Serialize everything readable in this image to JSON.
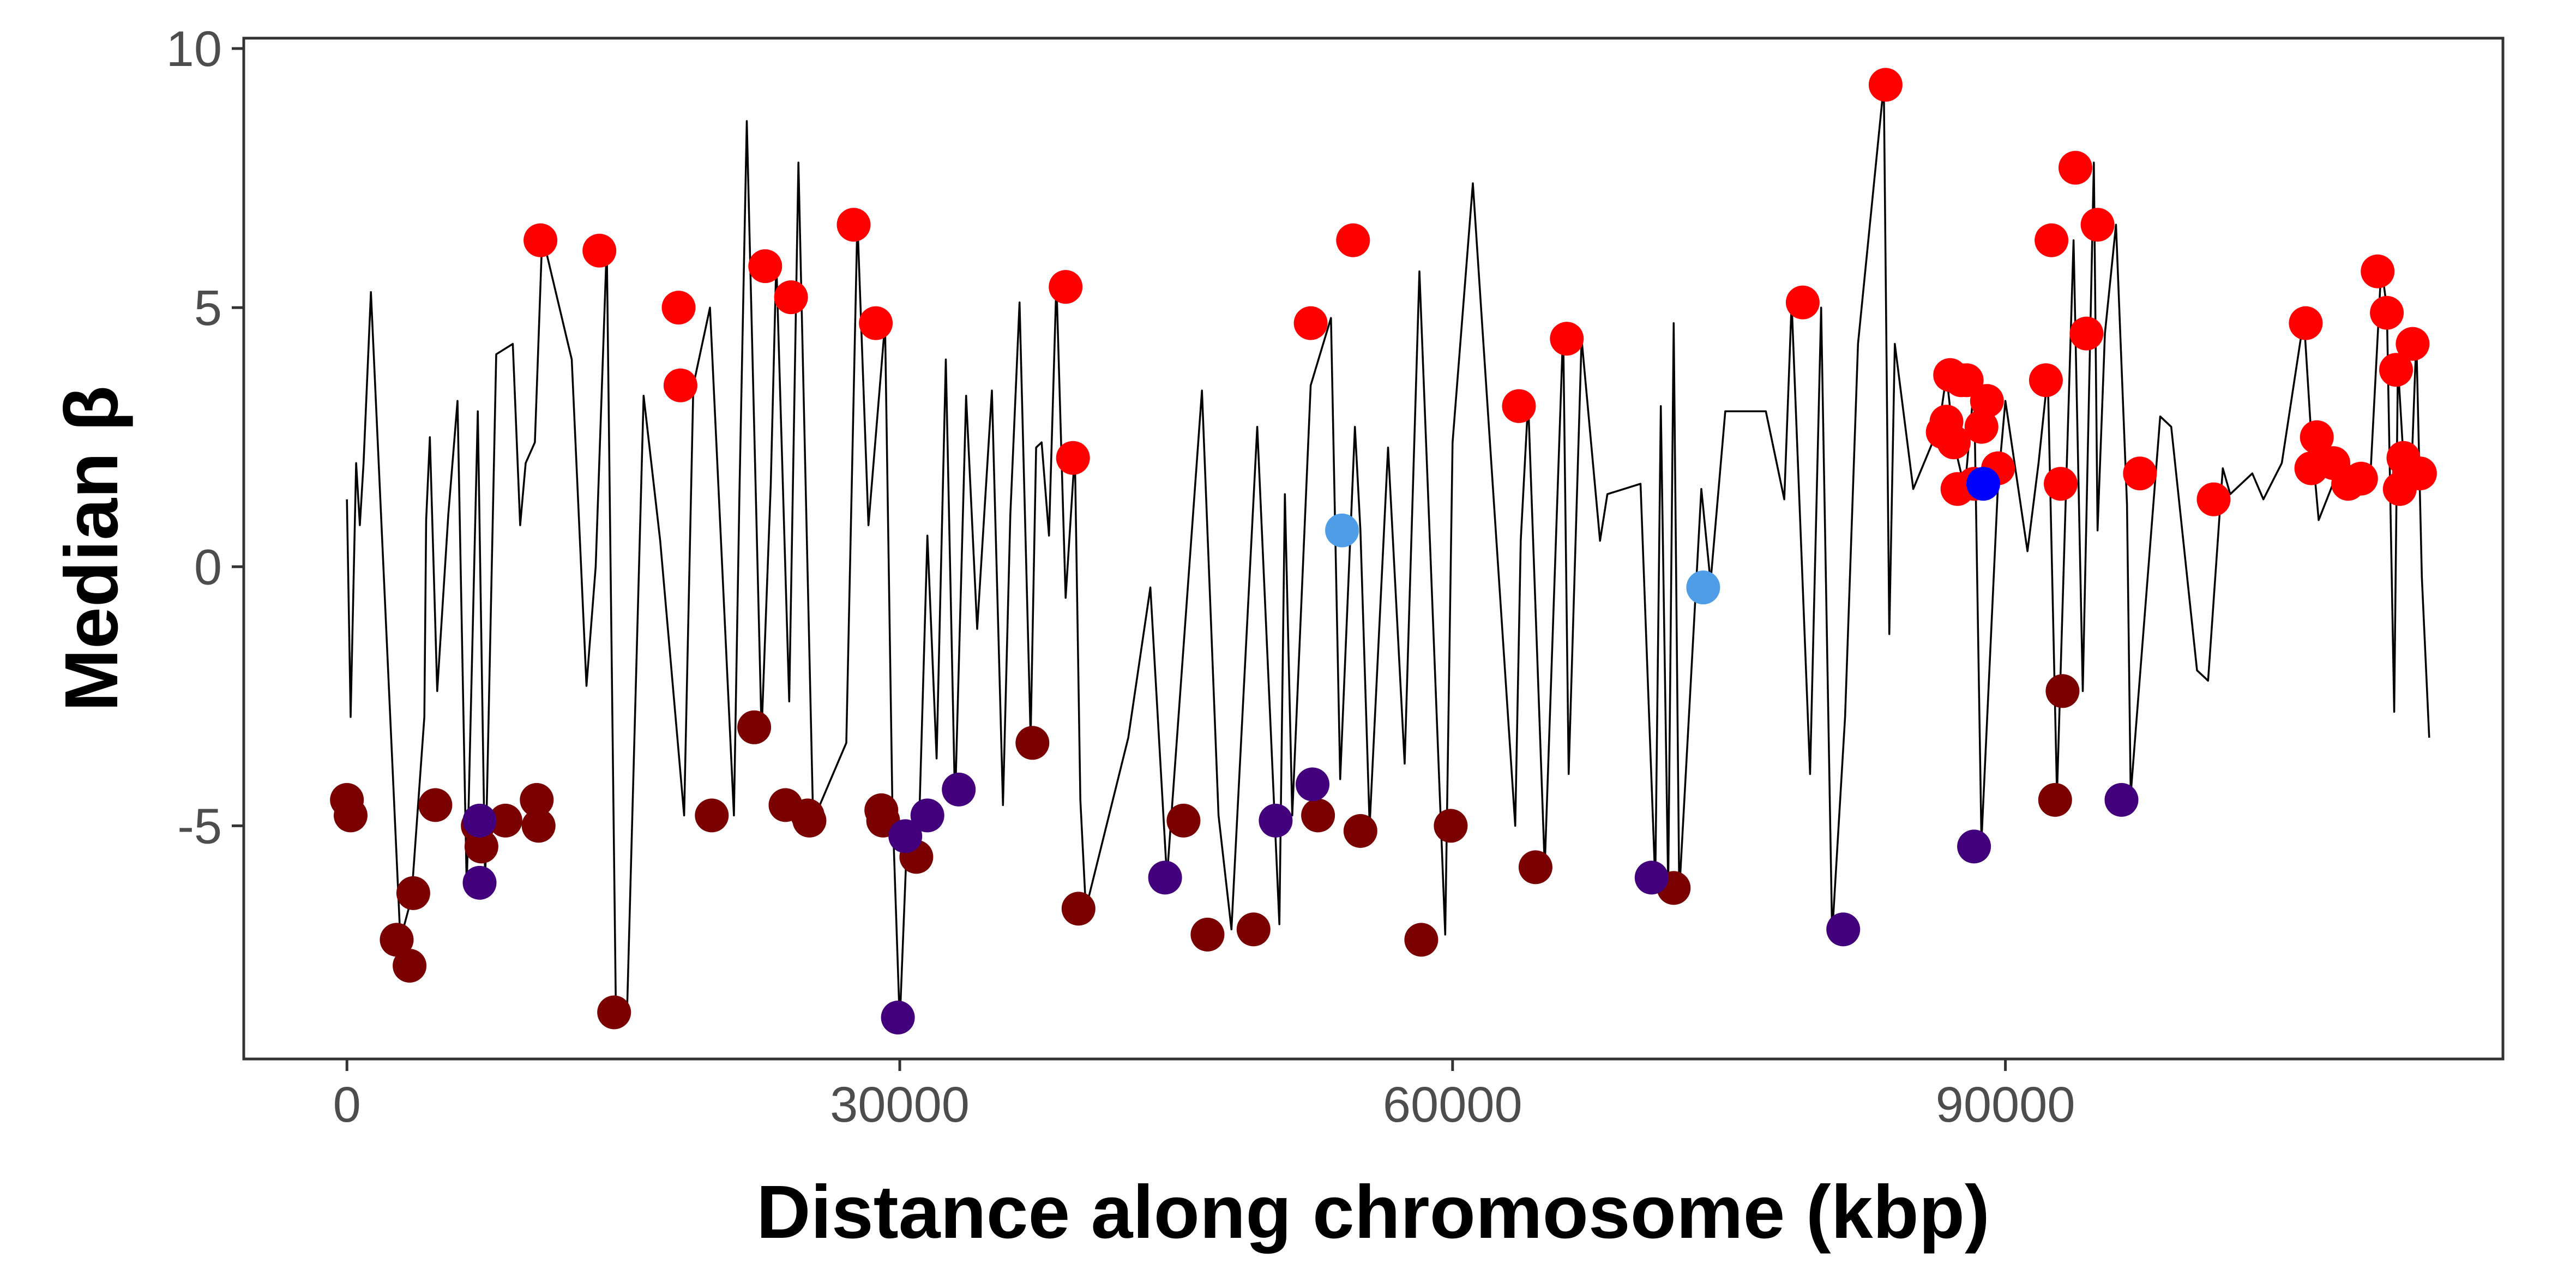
{
  "chart_data": {
    "type": "scatter",
    "title": "",
    "xlabel": "Distance along chromosome (kbp)",
    "ylabel": "Median β",
    "xlim": [
      -5600,
      117000
    ],
    "ylim": [
      -9.5,
      10.2
    ],
    "x_ticks": [
      0,
      30000,
      60000,
      90000
    ],
    "x_tick_labels": [
      "0",
      "30000",
      "60000",
      "90000"
    ],
    "y_ticks": [
      -5,
      0,
      5,
      10
    ],
    "y_tick_labels": [
      "-5",
      "0",
      "5",
      "10"
    ],
    "grid": false,
    "legend": "none",
    "colors": {
      "red": "#ff0000",
      "darkred": "#7b0000",
      "purple": "#42007d",
      "lightblue": "#4f9de6",
      "blue": "#0000ff",
      "line": "#000000"
    },
    "line_series": {
      "name": "",
      "color": "#000000",
      "x": [
        0,
        200,
        500,
        700,
        900,
        1300,
        2900,
        3500,
        4200,
        4300,
        4500,
        4900,
        5500,
        6000,
        6500,
        7100,
        7500,
        8100,
        9000,
        9400,
        9700,
        10200,
        10600,
        12200,
        13000,
        13500,
        14100,
        14600,
        15000,
        15200,
        16100,
        17000,
        18300,
        18800,
        19700,
        21000,
        21300,
        21700,
        22500,
        23000,
        23300,
        24000,
        24500,
        25300,
        27100,
        27700,
        28300,
        29200,
        29600,
        30000,
        30400,
        31000,
        31500,
        32000,
        32500,
        33000,
        33600,
        34200,
        35000,
        35600,
        36000,
        36500,
        37100,
        37400,
        37700,
        38100,
        38500,
        39000,
        39500,
        39800,
        40100,
        42400,
        43600,
        44500,
        46400,
        47300,
        48000,
        49400,
        50600,
        50900,
        51300,
        52300,
        53400,
        53900,
        54700,
        55000,
        55500,
        56500,
        57400,
        58200,
        59600,
        60000,
        61100,
        63400,
        63700,
        64100,
        65000,
        66000,
        66300,
        67000,
        68000,
        68400,
        70200,
        71000,
        71300,
        71700,
        72000,
        72300,
        73500,
        74000,
        74800,
        77000,
        78000,
        78400,
        79400,
        80000,
        80600,
        81300,
        82000,
        83400,
        83700,
        84000,
        85000,
        86400,
        86800,
        87200,
        87800,
        88300,
        88700,
        89600,
        90000,
        91200,
        91800,
        92300,
        92800,
        93300,
        93700,
        94200,
        94800,
        95000,
        95400,
        96000,
        96600,
        96800,
        98400,
        99000,
        100400,
        101000,
        101800,
        102200,
        103400,
        104000,
        105000,
        106200,
        106600,
        107000,
        108000,
        108600,
        109300,
        109800,
        110400,
        110700,
        111100,
        111300,
        111600,
        112000,
        112300,
        112600,
        113000
      ],
      "y": [
        1.3,
        -2.9,
        2.0,
        0.8,
        2.0,
        5.3,
        -7.2,
        -6.4,
        -2.9,
        0.9,
        2.5,
        -2.4,
        1.0,
        3.2,
        -6.2,
        3.0,
        -6.1,
        4.1,
        4.3,
        0.8,
        2.0,
        2.4,
        6.4,
        4.0,
        -2.3,
        0.0,
        6.2,
        -8.7,
        -8.8,
        -8.6,
        3.3,
        0.5,
        -4.8,
        3.5,
        5.0,
        -4.8,
        1.4,
        8.6,
        -3.2,
        1.6,
        5.9,
        -2.6,
        7.8,
        -4.9,
        -3.4,
        6.7,
        0.8,
        4.7,
        -4.6,
        -8.8,
        -5.2,
        -5.6,
        0.6,
        -3.7,
        4.0,
        -4.6,
        3.3,
        -1.2,
        3.4,
        -4.6,
        1.0,
        5.1,
        -3.3,
        2.3,
        2.4,
        0.6,
        5.5,
        -0.6,
        2.2,
        -4.5,
        -6.6,
        -3.3,
        -0.4,
        -6.0,
        3.4,
        -4.8,
        -7.0,
        2.7,
        -6.9,
        1.4,
        -4.8,
        3.5,
        4.8,
        -4.1,
        2.7,
        0.7,
        -5.0,
        2.3,
        -3.8,
        5.7,
        -7.1,
        2.4,
        7.4,
        -5.0,
        0.5,
        3.2,
        -5.8,
        4.6,
        -4.0,
        4.4,
        0.5,
        1.4,
        1.6,
        -6.1,
        3.1,
        -6.2,
        4.7,
        -6.3,
        1.5,
        -0.3,
        3.0,
        3.0,
        1.3,
        5.1,
        -4.0,
        5.0,
        -7.1,
        -2.9,
        4.3,
        9.3,
        -1.3,
        4.3,
        1.5,
        2.7,
        3.7,
        2.4,
        1.5,
        3.5,
        -5.3,
        1.6,
        3.2,
        0.3,
        2.0,
        3.7,
        -4.4,
        1.6,
        6.3,
        -2.4,
        7.8,
        0.7,
        4.5,
        6.6,
        1.2,
        -4.4,
        2.9,
        2.7,
        -2.0,
        -2.2,
        1.9,
        1.4,
        1.8,
        1.3,
        2.0,
        4.8,
        2.5,
        0.9,
        1.8,
        2.0,
        1.6,
        1.7,
        5.8,
        5.0,
        -2.8,
        3.9,
        2.1,
        1.5,
        4.4,
        -0.2,
        -3.3
      ]
    },
    "series": [
      {
        "name": "",
        "color": "#ff0000",
        "x": [
          10500,
          13700,
          18000,
          18100,
          22700,
          24100,
          27500,
          28700,
          39000,
          39400,
          52300,
          54600,
          63600,
          66200,
          79000,
          83500,
          86600,
          86800,
          87000,
          87200,
          87400,
          87600,
          87900,
          88300,
          88700,
          89000,
          89600,
          92200,
          92500,
          93000,
          93800,
          94400,
          95000,
          97300,
          101300,
          106300,
          106600,
          106900,
          107800,
          108600,
          109300,
          110200,
          110700,
          111200,
          111400,
          111600,
          111900,
          112100,
          112500
        ],
        "y": [
          6.3,
          6.1,
          5.0,
          3.5,
          5.8,
          5.2,
          6.6,
          4.7,
          5.4,
          2.1,
          4.7,
          6.3,
          3.1,
          4.4,
          5.1,
          9.3,
          2.6,
          2.8,
          3.7,
          2.4,
          1.5,
          3.6,
          3.6,
          1.6,
          2.7,
          3.2,
          1.9,
          3.6,
          6.3,
          1.6,
          7.7,
          4.5,
          6.6,
          1.8,
          1.3,
          4.7,
          1.9,
          2.5,
          2.0,
          1.6,
          1.7,
          5.7,
          4.9,
          3.8,
          1.5,
          2.1,
          1.8,
          4.3,
          1.8
        ]
      },
      {
        "name": "",
        "color": "#7b0000",
        "x": [
          0,
          200,
          2700,
          3400,
          3600,
          4800,
          7100,
          7300,
          8600,
          10300,
          10400,
          14500,
          19800,
          22100,
          23800,
          25000,
          25100,
          29000,
          29100,
          30900,
          37200,
          39700,
          45400,
          46700,
          49200,
          52700,
          55000,
          58300,
          59900,
          64500,
          72000,
          92700,
          93100
        ],
        "y": [
          -4.5,
          -4.8,
          -7.2,
          -7.7,
          -6.3,
          -4.6,
          -5.0,
          -5.4,
          -4.9,
          -4.5,
          -5.0,
          -8.6,
          -4.8,
          -3.1,
          -4.6,
          -4.8,
          -4.9,
          -4.7,
          -4.9,
          -5.6,
          -3.4,
          -6.6,
          -4.9,
          -7.1,
          -7.0,
          -4.8,
          -5.1,
          -7.2,
          -5.0,
          -5.8,
          -6.2,
          -4.5,
          -2.4
        ]
      },
      {
        "name": "",
        "color": "#42007d",
        "x": [
          7200,
          7200,
          29900,
          30300,
          31500,
          33200,
          44400,
          50400,
          52400,
          70800,
          81200,
          88300,
          96300
        ],
        "y": [
          -4.9,
          -6.1,
          -8.7,
          -5.2,
          -4.8,
          -4.3,
          -6.0,
          -4.9,
          -4.2,
          -6.0,
          -7.0,
          -5.4,
          -4.5
        ]
      },
      {
        "name": "",
        "color": "#4f9de6",
        "x": [
          54000,
          73600
        ],
        "y": [
          0.7,
          -0.4
        ]
      },
      {
        "name": "",
        "color": "#0000ff",
        "x": [
          88800
        ],
        "y": [
          1.6
        ]
      }
    ]
  }
}
